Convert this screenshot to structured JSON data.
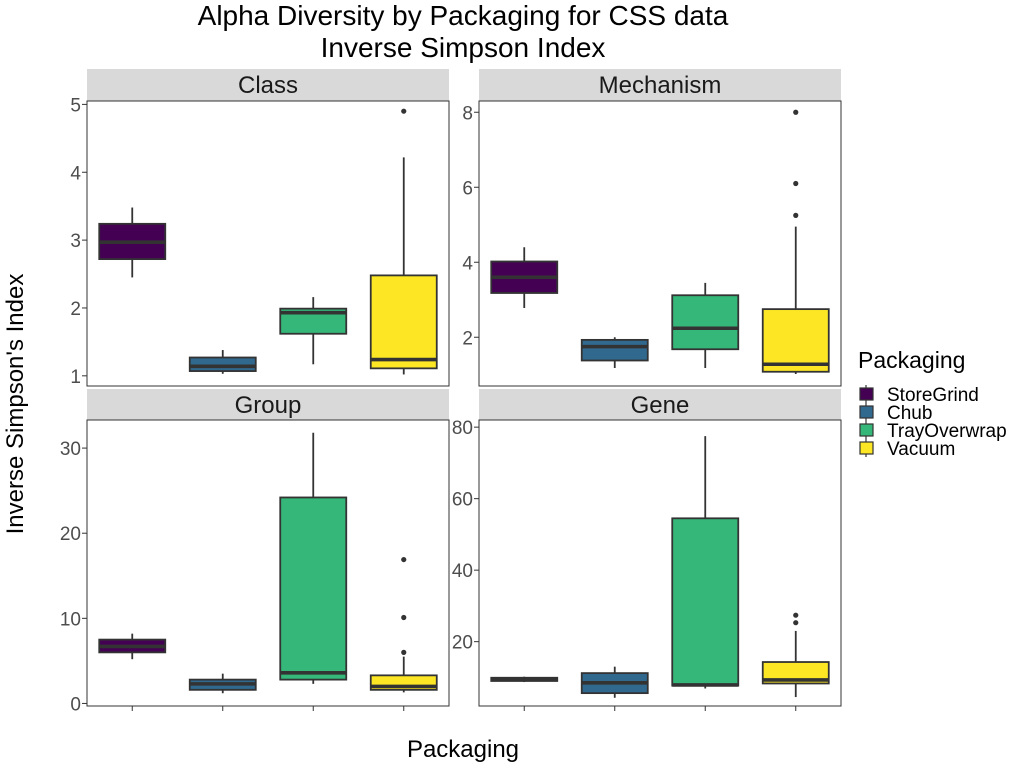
{
  "chart_data": {
    "type": "box",
    "title": "Alpha Diversity by Packaging for CSS data",
    "subtitle": "Inverse Simpson Index",
    "xlabel": "Packaging",
    "ylabel": "Inverse Simpson's Index",
    "legend": {
      "title": "Packaging",
      "position": "right",
      "entries": [
        {
          "name": "StoreGrind",
          "color": "#440154"
        },
        {
          "name": "Chub",
          "color": "#31688E"
        },
        {
          "name": "TrayOverwrap",
          "color": "#35B779"
        },
        {
          "name": "Vacuum",
          "color": "#FDE725"
        }
      ]
    },
    "categories": [
      "StoreGrind",
      "Chub",
      "TrayOverwrap",
      "Vacuum"
    ],
    "panels": [
      {
        "name": "Class",
        "ylim": [
          0.85,
          5.05
        ],
        "yticks": [
          1,
          2,
          3,
          4,
          5
        ],
        "boxes": [
          {
            "category": "StoreGrind",
            "min": 2.45,
            "q1": 2.72,
            "median": 2.97,
            "q3": 3.24,
            "max": 3.48,
            "outliers": []
          },
          {
            "category": "Chub",
            "min": 1.03,
            "q1": 1.07,
            "median": 1.14,
            "q3": 1.27,
            "max": 1.38,
            "outliers": []
          },
          {
            "category": "TrayOverwrap",
            "min": 1.17,
            "q1": 1.62,
            "median": 1.93,
            "q3": 1.99,
            "max": 2.16,
            "outliers": []
          },
          {
            "category": "Vacuum",
            "min": 1.02,
            "q1": 1.11,
            "median": 1.24,
            "q3": 2.48,
            "max": 4.22,
            "outliers": [
              4.9
            ]
          }
        ]
      },
      {
        "name": "Mechanism",
        "ylim": [
          0.7,
          8.3
        ],
        "yticks": [
          2,
          4,
          6,
          8
        ],
        "boxes": [
          {
            "category": "StoreGrind",
            "min": 2.78,
            "q1": 3.18,
            "median": 3.6,
            "q3": 4.02,
            "max": 4.4,
            "outliers": []
          },
          {
            "category": "Chub",
            "min": 1.18,
            "q1": 1.38,
            "median": 1.75,
            "q3": 1.93,
            "max": 2.0,
            "outliers": []
          },
          {
            "category": "TrayOverwrap",
            "min": 1.18,
            "q1": 1.68,
            "median": 2.24,
            "q3": 3.12,
            "max": 3.45,
            "outliers": []
          },
          {
            "category": "Vacuum",
            "min": 1.02,
            "q1": 1.08,
            "median": 1.28,
            "q3": 2.75,
            "max": 4.95,
            "outliers": [
              5.25,
              6.1,
              8.0
            ]
          }
        ]
      },
      {
        "name": "Group",
        "ylim": [
          -0.3,
          33.3
        ],
        "yticks": [
          0,
          10,
          20,
          30
        ],
        "boxes": [
          {
            "category": "StoreGrind",
            "min": 5.2,
            "q1": 6.0,
            "median": 6.7,
            "q3": 7.5,
            "max": 8.2,
            "outliers": []
          },
          {
            "category": "Chub",
            "min": 1.2,
            "q1": 1.6,
            "median": 2.3,
            "q3": 2.8,
            "max": 3.5,
            "outliers": []
          },
          {
            "category": "TrayOverwrap",
            "min": 2.3,
            "q1": 2.8,
            "median": 3.6,
            "q3": 24.2,
            "max": 31.8,
            "outliers": []
          },
          {
            "category": "Vacuum",
            "min": 1.3,
            "q1": 1.6,
            "median": 2.0,
            "q3": 3.3,
            "max": 5.5,
            "outliers": [
              6.0,
              10.1,
              16.9
            ]
          }
        ]
      },
      {
        "name": "Gene",
        "ylim": [
          2,
          82
        ],
        "yticks": [
          20,
          40,
          60,
          80
        ],
        "boxes": [
          {
            "category": "StoreGrind",
            "min": 8.7,
            "q1": 9.0,
            "median": 9.4,
            "q3": 9.9,
            "max": 10.2,
            "outliers": []
          },
          {
            "category": "Chub",
            "min": 4.3,
            "q1": 5.6,
            "median": 8.5,
            "q3": 11.2,
            "max": 13.0,
            "outliers": []
          },
          {
            "category": "TrayOverwrap",
            "min": 6.9,
            "q1": 7.7,
            "median": 7.9,
            "q3": 54.5,
            "max": 77.5,
            "outliers": []
          },
          {
            "category": "Vacuum",
            "min": 4.5,
            "q1": 8.3,
            "median": 9.3,
            "q3": 14.3,
            "max": 23.0,
            "outliers": [
              25.3,
              27.4
            ]
          }
        ]
      }
    ]
  }
}
